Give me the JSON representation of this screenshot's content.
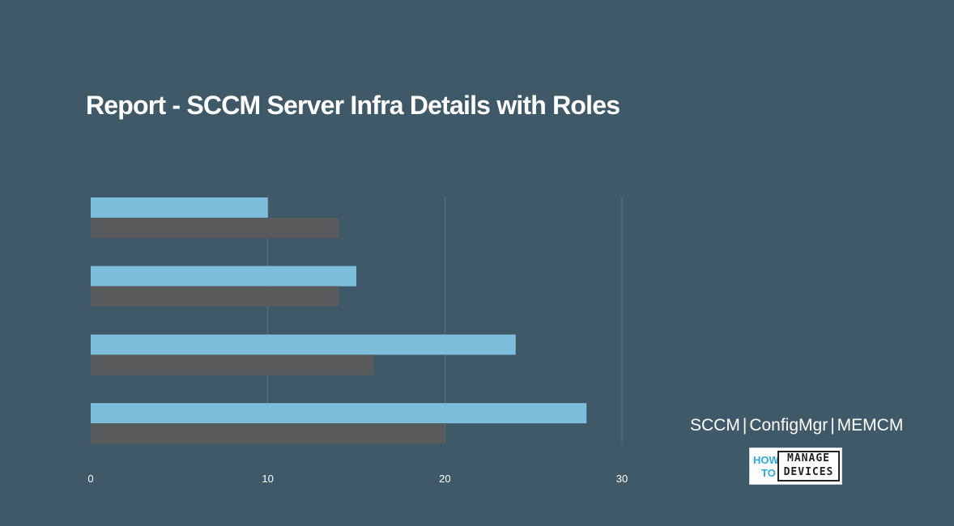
{
  "title": "Report - SCCM Server Infra Details with Roles",
  "brand": {
    "items": [
      "SCCM",
      "ConfigMgr",
      "MEMCM"
    ],
    "separator": "|",
    "logo": {
      "how": "HOW",
      "to": "TO",
      "manage": "MANAGE",
      "devices": "DEVICES"
    }
  },
  "colors": {
    "background": "#3f5968",
    "series_1": "#7dbedc",
    "series_2": "#595a5c",
    "gridline": "#5b7381",
    "text": "#ffffff"
  },
  "chart_data": {
    "type": "bar",
    "orientation": "horizontal",
    "title": "",
    "xlabel": "",
    "ylabel": "",
    "categories": [
      "",
      "",
      "",
      ""
    ],
    "series": [
      {
        "values": [
          10,
          15,
          24,
          28
        ]
      },
      {
        "values": [
          14,
          14,
          16,
          20
        ]
      }
    ],
    "xlim": [
      0,
      30
    ],
    "xticks": [
      0,
      10,
      20,
      30
    ],
    "grid": "vertical",
    "legend": "none"
  }
}
